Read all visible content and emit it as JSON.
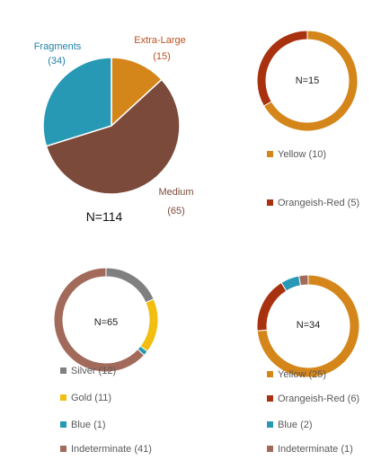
{
  "chart_data": [
    {
      "type": "pie",
      "id": "main",
      "categories": [
        "Extra-Large",
        "Medium",
        "Fragments"
      ],
      "values": [
        15,
        65,
        34
      ],
      "count_labels": [
        "(15)",
        "(65)",
        "(34)"
      ],
      "colors": [
        "#D4861A",
        "#7B4A3A",
        "#2799B5"
      ],
      "total_label": "N=114"
    },
    {
      "type": "pie",
      "id": "xl",
      "categories": [
        "Yellow",
        "Orangeish-Red"
      ],
      "values": [
        10,
        5
      ],
      "legend": [
        "Yellow (10)",
        "Orangeish-Red (5)"
      ],
      "colors": [
        "#D4861A",
        "#A8320F"
      ],
      "center_label": "N=15"
    },
    {
      "type": "pie",
      "id": "medium",
      "categories": [
        "Silver",
        "Gold",
        "Blue",
        "Indeterminate"
      ],
      "values": [
        12,
        11,
        1,
        41
      ],
      "legend": [
        "Silver (12)",
        "Gold (11)",
        "Blue (1)",
        "Indeterminate (41)"
      ],
      "colors": [
        "#808080",
        "#F2BE12",
        "#2799B5",
        "#A26A5A"
      ],
      "center_label": "N=65"
    },
    {
      "type": "pie",
      "id": "fragments",
      "categories": [
        "Yellow",
        "Orangeish-Red",
        "Blue",
        "Indeterminate"
      ],
      "values": [
        25,
        6,
        2,
        1
      ],
      "legend": [
        "Yellow (25)",
        "Orangeish-Red (6)",
        "Blue (2)",
        "Indeterminate (1)"
      ],
      "colors": [
        "#D4861A",
        "#A8320F",
        "#2799B5",
        "#A26A5A"
      ],
      "center_label": "N=34"
    }
  ]
}
